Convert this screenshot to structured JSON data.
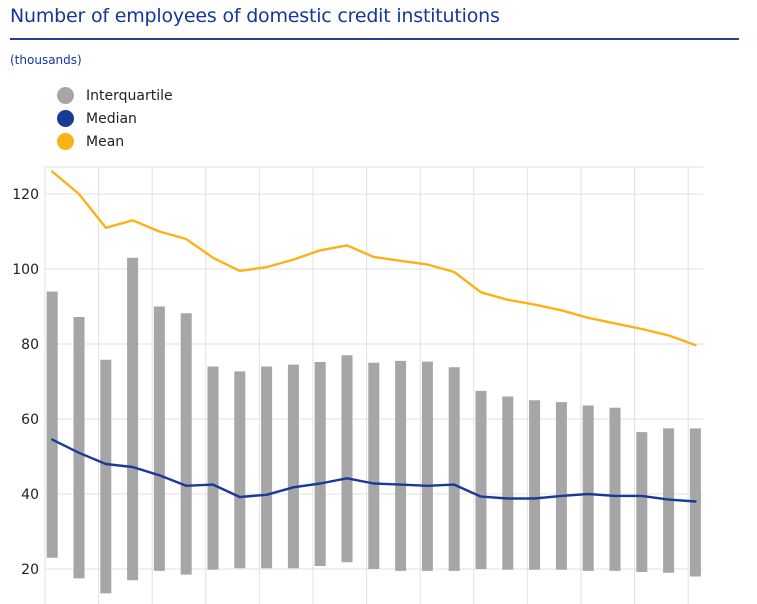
{
  "header": {
    "title": "Number of employees of domestic credit institutions",
    "unit": "(thousands)"
  },
  "legend": [
    {
      "label": "Interquartile",
      "color": "#a6a6a6"
    },
    {
      "label": "Median",
      "color": "#1a3a98"
    },
    {
      "label": "Mean",
      "color": "#fbb117"
    }
  ],
  "chart_data": {
    "type": "bar",
    "title": "Number of employees of domestic credit institutions",
    "ylabel": "(thousands)",
    "xlabel": "",
    "ylim": [
      15,
      127
    ],
    "yticks": [
      20,
      40,
      60,
      80,
      100,
      120
    ],
    "grid": true,
    "legend_position": "top-left",
    "series": [
      {
        "name": "Interquartile",
        "kind": "range",
        "color": "#a6a6a6",
        "low": [
          23.0,
          17.5,
          13.5,
          17.0,
          19.5,
          18.5,
          19.8,
          20.2,
          20.2,
          20.2,
          20.8,
          21.8,
          20.0,
          19.5,
          19.5,
          19.5,
          20.0,
          19.8,
          19.8,
          19.8,
          19.5,
          19.5,
          19.2,
          19.0,
          18.0
        ],
        "high": [
          94.0,
          87.2,
          75.8,
          103.0,
          90.0,
          88.2,
          74.0,
          72.7,
          74.0,
          74.5,
          75.2,
          77.0,
          75.0,
          75.5,
          75.3,
          73.8,
          67.5,
          66.0,
          65.0,
          64.5,
          63.6,
          63.0,
          56.5,
          57.5,
          57.5
        ]
      },
      {
        "name": "Median",
        "kind": "line",
        "color": "#1a3a98",
        "values": [
          54.5,
          51.0,
          48.0,
          47.2,
          45.0,
          42.2,
          42.5,
          39.2,
          39.8,
          41.8,
          42.8,
          44.2,
          42.8,
          42.5,
          42.2,
          42.5,
          39.3,
          38.8,
          38.8,
          39.5,
          40.0,
          39.5,
          39.5,
          38.5,
          38.0
        ]
      },
      {
        "name": "Mean",
        "kind": "line",
        "color": "#fbb117",
        "values": [
          126.0,
          120.0,
          111.0,
          113.0,
          110.0,
          108.0,
          103.0,
          99.5,
          100.5,
          102.5,
          105.0,
          106.3,
          103.2,
          102.2,
          101.2,
          99.2,
          93.8,
          91.8,
          90.5,
          89.0,
          87.0,
          85.5,
          84.0,
          82.3,
          79.7
        ]
      }
    ]
  }
}
